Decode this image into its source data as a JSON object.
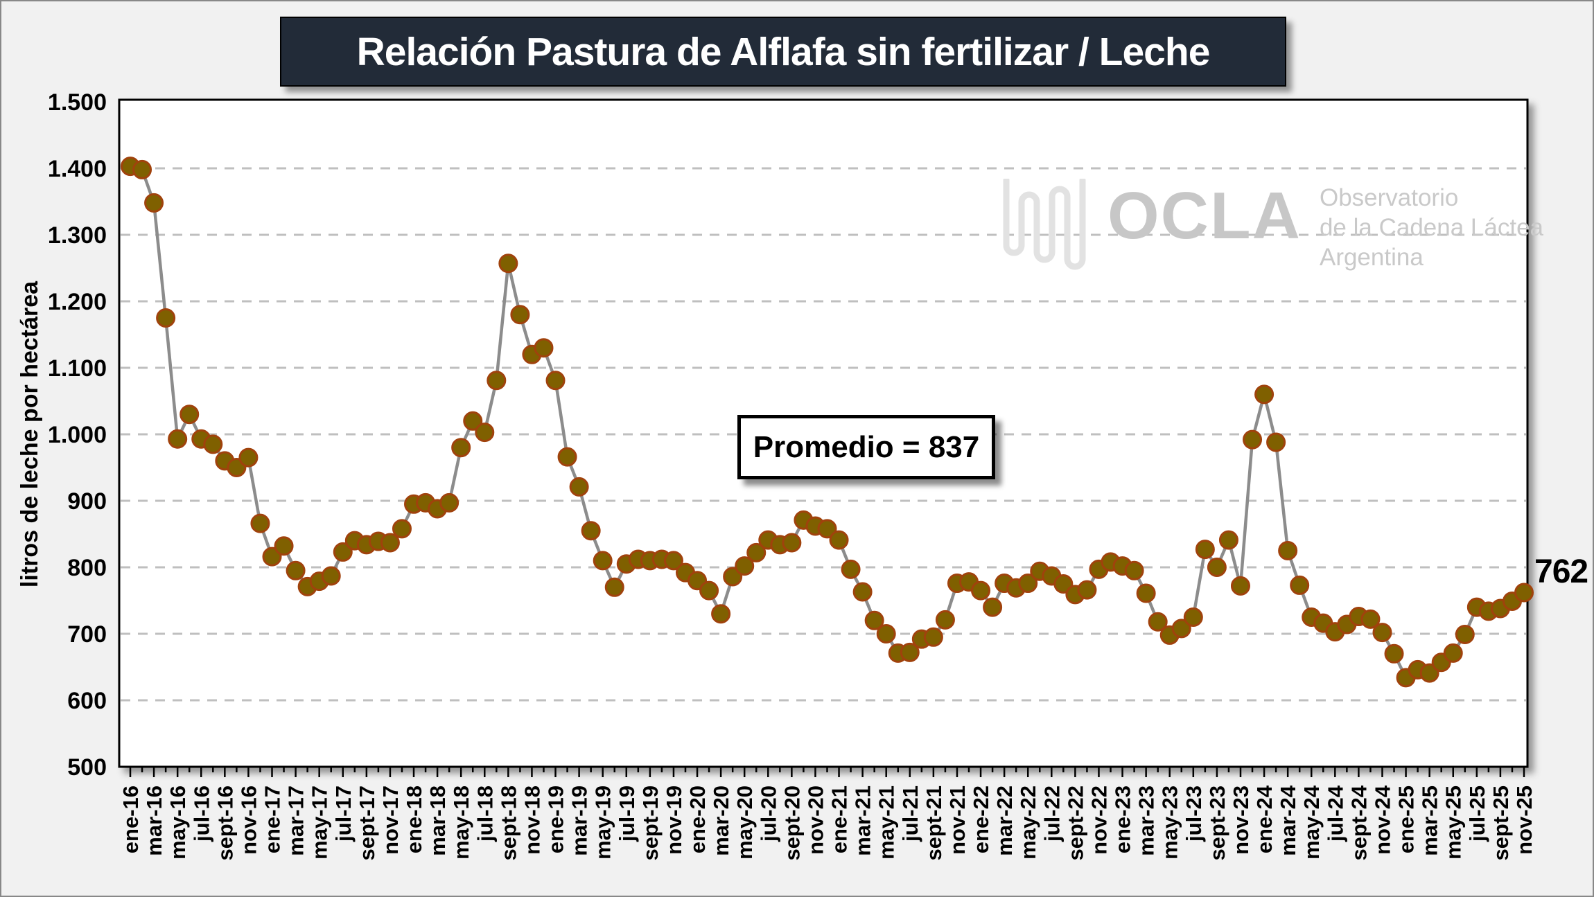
{
  "title": "Relación Pastura de Alflafa sin fertilizar / Leche",
  "annotation": {
    "text": "Promedio = 837"
  },
  "last_value_label": "762",
  "watermark": {
    "brand": "OCLA",
    "org_lines": [
      "Observatorio",
      "de la Cadena Láctea",
      "Argentina"
    ]
  },
  "chart_data": {
    "type": "line",
    "title": "Relación Pastura de Alflafa sin fertilizar / Leche",
    "xlabel": "",
    "ylabel": "litros de leche por hectárea",
    "ylim": [
      500,
      1500
    ],
    "grid": "horizontal-dashed",
    "legend": "none",
    "frequency": "monthly",
    "start_month": "ene-16",
    "end_month": "nov-25",
    "average": 837,
    "last_value": 762,
    "y_tick_labels": [
      "500",
      "600",
      "700",
      "800",
      "900",
      "1.000",
      "1.100",
      "1.200",
      "1.300",
      "1.400",
      "1.500"
    ],
    "x_tick_labels": [
      "ene-16",
      "mar-16",
      "may-16",
      "jul-16",
      "sept-16",
      "nov-16",
      "ene-17",
      "mar-17",
      "may-17",
      "jul-17",
      "sept-17",
      "nov-17",
      "ene-18",
      "mar-18",
      "may-18",
      "jul-18",
      "sept-18",
      "nov-18",
      "ene-19",
      "mar-19",
      "may-19",
      "jul-19",
      "sept-19",
      "nov-19",
      "ene-20",
      "mar-20",
      "may-20",
      "jul-20",
      "sept-20",
      "nov-20",
      "ene-21",
      "mar-21",
      "may-21",
      "jul-21",
      "sept-21",
      "nov-21",
      "ene-22",
      "mar-22",
      "may-22",
      "jul-22",
      "sept-22",
      "nov-22",
      "ene-23",
      "mar-23",
      "may-23",
      "jul-23",
      "sept-23",
      "nov-23",
      "ene-24",
      "mar-24",
      "may-24",
      "jul-24",
      "sept-24",
      "nov-24",
      "ene-25",
      "mar-25",
      "may-25",
      "jul-25",
      "sept-25",
      "nov-25"
    ],
    "values": [
      1403,
      1398,
      1348,
      1175,
      993,
      1030,
      993,
      985,
      960,
      950,
      965,
      866,
      816,
      832,
      795,
      771,
      779,
      787,
      823,
      840,
      834,
      839,
      837,
      858,
      895,
      897,
      888,
      897,
      980,
      1020,
      1003,
      1081,
      1257,
      1180,
      1120,
      1130,
      1081,
      966,
      921,
      855,
      810,
      770,
      805,
      812,
      810,
      812,
      810,
      792,
      780,
      765,
      730,
      786,
      802,
      822,
      841,
      834,
      837,
      871,
      862,
      858,
      841,
      797,
      763,
      720,
      700,
      671,
      672,
      692,
      695,
      721,
      776,
      778,
      765,
      740,
      776,
      769,
      776,
      794,
      787,
      775,
      759,
      766,
      797,
      808,
      802,
      795,
      761,
      718,
      698,
      708,
      725,
      827,
      800,
      841,
      772,
      992,
      1060,
      988,
      825,
      773,
      725,
      716,
      703,
      714,
      726,
      722,
      702,
      670,
      634,
      646,
      641,
      657,
      671,
      699,
      740,
      734,
      738,
      749,
      762
    ],
    "colors": {
      "line": "#8c8c8c",
      "marker_fill": "#7f6000",
      "marker_stroke": "#a0420c",
      "gridline": "#bfbfbf",
      "plot_background": "#ffffff",
      "title_background": "#222b38"
    }
  }
}
